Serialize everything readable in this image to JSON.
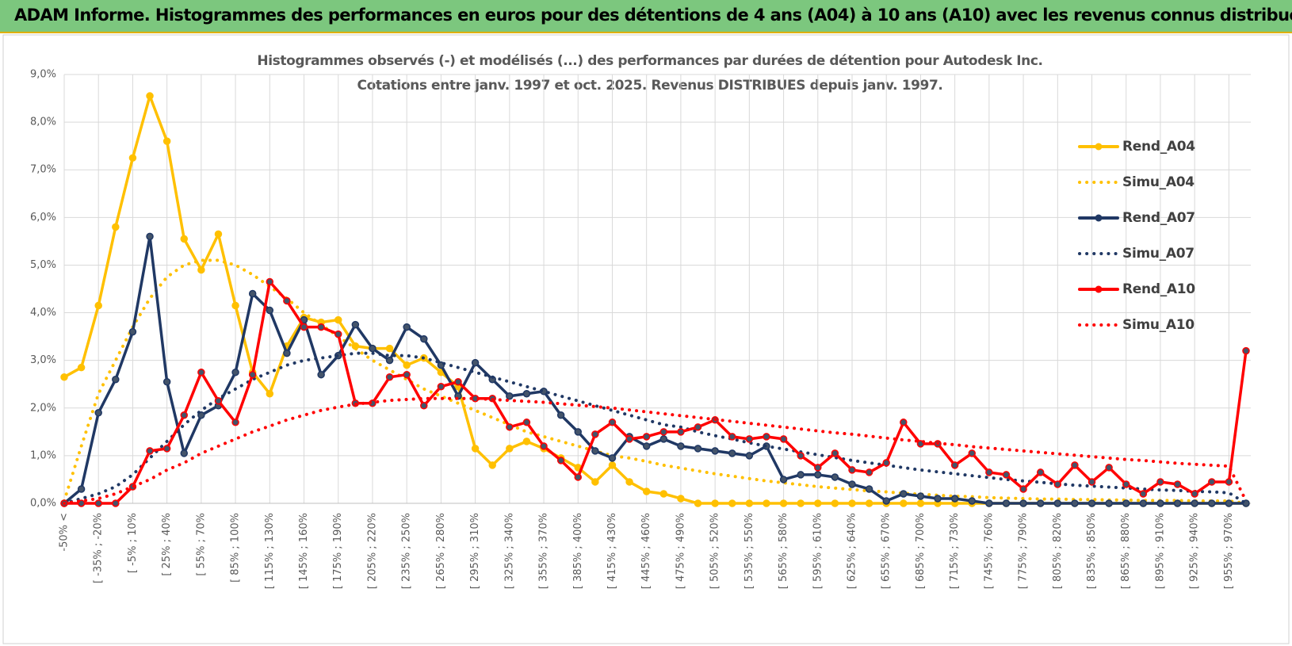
{
  "header": "ADAM Informe. Histogrammes des performances en euros pour des détentions de 4 ans (A04) à 10 ans (A10) avec les revenus connus distribués",
  "chart_data": {
    "type": "line",
    "title": "Histogrammes observés (-) et modélisés (...) des performances par durées de détention pour Autodesk Inc.",
    "subtitle": "Cotations entre janv. 1997 et oct. 2025.  Revenus DISTRIBUES depuis janv. 1997.",
    "categories": [
      "-50% <",
      null,
      "[ -35% ; -20%",
      null,
      "[ -5% ; 10%",
      null,
      "[ 25% ; 40%",
      null,
      "[ 55% ; 70%",
      null,
      "[ 85% ; 100%",
      null,
      "[ 115% ; 130%",
      null,
      "[ 145% ; 160%",
      null,
      "[ 175% ; 190%",
      null,
      "[ 205% ; 220%",
      null,
      "[ 235% ; 250%",
      null,
      "[ 265% ; 280%",
      null,
      "[ 295% ; 310%",
      null,
      "[ 325% ; 340%",
      null,
      "[ 355% ; 370%",
      null,
      "[ 385% ; 400%",
      null,
      "[ 415% ; 430%",
      null,
      "[ 445% ; 460%",
      null,
      "[ 475% ; 490%",
      null,
      "[ 505% ; 520%",
      null,
      "[ 535% ; 550%",
      null,
      "[ 565% ; 580%",
      null,
      "[ 595% ; 610%",
      null,
      "[ 625% ; 640%",
      null,
      "[ 655% ; 670%",
      null,
      "[ 685% ; 700%",
      null,
      "[ 715% ; 730%",
      null,
      "[ 745% ; 760%",
      null,
      "[ 775% ; 790%",
      null,
      "[ 805% ; 820%",
      null,
      "[ 835% ; 850%",
      null,
      "[ 865% ; 880%",
      null,
      "[ 895% ; 910%",
      null,
      "[ 925% ; 940%",
      null,
      "[ 955% ; 970%",
      null
    ],
    "ylim": [
      0,
      9
    ],
    "yticks": [
      {
        "value": 0,
        "label": "0,0%"
      },
      {
        "value": 1,
        "label": "1,0%"
      },
      {
        "value": 2,
        "label": "2,0%"
      },
      {
        "value": 3,
        "label": "3,0%"
      },
      {
        "value": 4,
        "label": "4,0%"
      },
      {
        "value": 5,
        "label": "5,0%"
      },
      {
        "value": 6,
        "label": "6,0%"
      },
      {
        "value": 7,
        "label": "7,0%"
      },
      {
        "value": 8,
        "label": "8,0%"
      },
      {
        "value": 9,
        "label": "9,0%"
      }
    ],
    "grid": true,
    "legend": "right",
    "series": [
      {
        "name": "Rend_A04",
        "color": "#ffc000",
        "style": "solid",
        "markers": true,
        "values": [
          2.65,
          2.85,
          4.15,
          5.8,
          7.25,
          8.55,
          7.6,
          5.55,
          4.9,
          5.65,
          4.15,
          2.75,
          2.3,
          3.3,
          3.9,
          3.8,
          3.85,
          3.3,
          3.25,
          3.25,
          2.9,
          3.05,
          2.75,
          2.45,
          1.15,
          0.8,
          1.15,
          1.3,
          1.15,
          0.95,
          0.75,
          0.45,
          0.8,
          0.45,
          0.25,
          0.2,
          0.1,
          0,
          0,
          0,
          0,
          0,
          0,
          0,
          0,
          0,
          0,
          0,
          0,
          0,
          0,
          0,
          0,
          0,
          0,
          0,
          0,
          0,
          0,
          0,
          0,
          0,
          0,
          0,
          0,
          0,
          0,
          0,
          0,
          0
        ]
      },
      {
        "name": "Simu_A04",
        "color": "#ffc000",
        "style": "dotted",
        "markers": false,
        "values": [
          0.05,
          1.2,
          2.3,
          3.0,
          3.7,
          4.3,
          4.75,
          5.0,
          5.1,
          5.1,
          5.0,
          4.8,
          4.55,
          4.3,
          4.0,
          3.75,
          3.5,
          3.25,
          3.0,
          2.8,
          2.6,
          2.4,
          2.25,
          2.1,
          1.95,
          1.8,
          1.65,
          1.5,
          1.4,
          1.3,
          1.2,
          1.1,
          1.0,
          0.95,
          0.88,
          0.8,
          0.74,
          0.68,
          0.62,
          0.57,
          0.52,
          0.47,
          0.43,
          0.39,
          0.35,
          0.32,
          0.29,
          0.26,
          0.24,
          0.21,
          0.19,
          0.17,
          0.15,
          0.14,
          0.12,
          0.11,
          0.1,
          0.09,
          0.09,
          0.08,
          0.08,
          0.07,
          0.07,
          0.06,
          0.06,
          0.06,
          0.05,
          0.05,
          0.05,
          0
        ]
      },
      {
        "name": "Rend_A07",
        "color": "#203864",
        "style": "solid",
        "markers": true,
        "values": [
          0,
          0.3,
          1.9,
          2.6,
          3.6,
          5.6,
          2.55,
          1.05,
          1.85,
          2.05,
          2.75,
          4.4,
          4.05,
          3.15,
          3.85,
          2.7,
          3.1,
          3.75,
          3.25,
          3.0,
          3.7,
          3.45,
          2.9,
          2.25,
          2.95,
          2.6,
          2.25,
          2.3,
          2.35,
          1.85,
          1.5,
          1.1,
          0.95,
          1.4,
          1.2,
          1.35,
          1.2,
          1.15,
          1.1,
          1.05,
          1.0,
          1.2,
          0.5,
          0.6,
          0.6,
          0.55,
          0.4,
          0.3,
          0.05,
          0.2,
          0.15,
          0.1,
          0.1,
          0.05,
          0,
          0,
          0,
          0,
          0,
          0,
          0,
          0,
          0,
          0,
          0,
          0,
          0,
          0,
          0,
          0
        ]
      },
      {
        "name": "Simu_A07",
        "color": "#203864",
        "style": "dotted",
        "markers": false,
        "values": [
          0,
          0.1,
          0.2,
          0.35,
          0.6,
          0.95,
          1.3,
          1.65,
          1.95,
          2.2,
          2.4,
          2.6,
          2.75,
          2.9,
          3.0,
          3.05,
          3.1,
          3.15,
          3.15,
          3.1,
          3.1,
          3.05,
          2.95,
          2.85,
          2.75,
          2.65,
          2.55,
          2.45,
          2.35,
          2.25,
          2.15,
          2.05,
          1.95,
          1.85,
          1.75,
          1.65,
          1.6,
          1.5,
          1.42,
          1.35,
          1.27,
          1.2,
          1.14,
          1.08,
          1.02,
          0.96,
          0.9,
          0.85,
          0.8,
          0.75,
          0.7,
          0.66,
          0.62,
          0.58,
          0.54,
          0.5,
          0.47,
          0.44,
          0.41,
          0.38,
          0.36,
          0.34,
          0.32,
          0.3,
          0.28,
          0.27,
          0.25,
          0.24,
          0.22,
          0
        ]
      },
      {
        "name": "Rend_A10",
        "color": "#ff0000",
        "style": "solid",
        "markers": true,
        "values": [
          0,
          0,
          0,
          0,
          0.35,
          1.1,
          1.15,
          1.85,
          2.75,
          2.15,
          1.7,
          2.7,
          4.65,
          4.25,
          3.7,
          3.7,
          3.55,
          2.1,
          2.1,
          2.65,
          2.7,
          2.05,
          2.45,
          2.55,
          2.2,
          2.2,
          1.6,
          1.7,
          1.2,
          0.9,
          0.55,
          1.45,
          1.7,
          1.35,
          1.4,
          1.5,
          1.5,
          1.6,
          1.75,
          1.4,
          1.35,
          1.4,
          1.35,
          1.0,
          0.75,
          1.05,
          0.7,
          0.65,
          0.85,
          1.7,
          1.25,
          1.25,
          0.8,
          1.05,
          0.65,
          0.6,
          0.3,
          0.65,
          0.4,
          0.8,
          0.45,
          0.75,
          0.4,
          0.2,
          0.45,
          0.4,
          0.2,
          0.45,
          0.45,
          3.2
        ]
      },
      {
        "name": "Simu_A10",
        "color": "#ff0000",
        "style": "dotted",
        "markers": false,
        "values": [
          0,
          0.05,
          0.1,
          0.2,
          0.35,
          0.5,
          0.7,
          0.85,
          1.05,
          1.2,
          1.35,
          1.5,
          1.62,
          1.75,
          1.85,
          1.95,
          2.02,
          2.08,
          2.12,
          2.16,
          2.18,
          2.2,
          2.2,
          2.2,
          2.2,
          2.18,
          2.16,
          2.14,
          2.12,
          2.09,
          2.06,
          2.03,
          2.0,
          1.96,
          1.92,
          1.88,
          1.84,
          1.8,
          1.76,
          1.72,
          1.68,
          1.64,
          1.6,
          1.56,
          1.52,
          1.48,
          1.45,
          1.41,
          1.37,
          1.33,
          1.3,
          1.26,
          1.23,
          1.19,
          1.16,
          1.13,
          1.1,
          1.07,
          1.04,
          1.01,
          0.98,
          0.95,
          0.92,
          0.9,
          0.87,
          0.84,
          0.82,
          0.8,
          0.78,
          0.05
        ]
      }
    ]
  }
}
